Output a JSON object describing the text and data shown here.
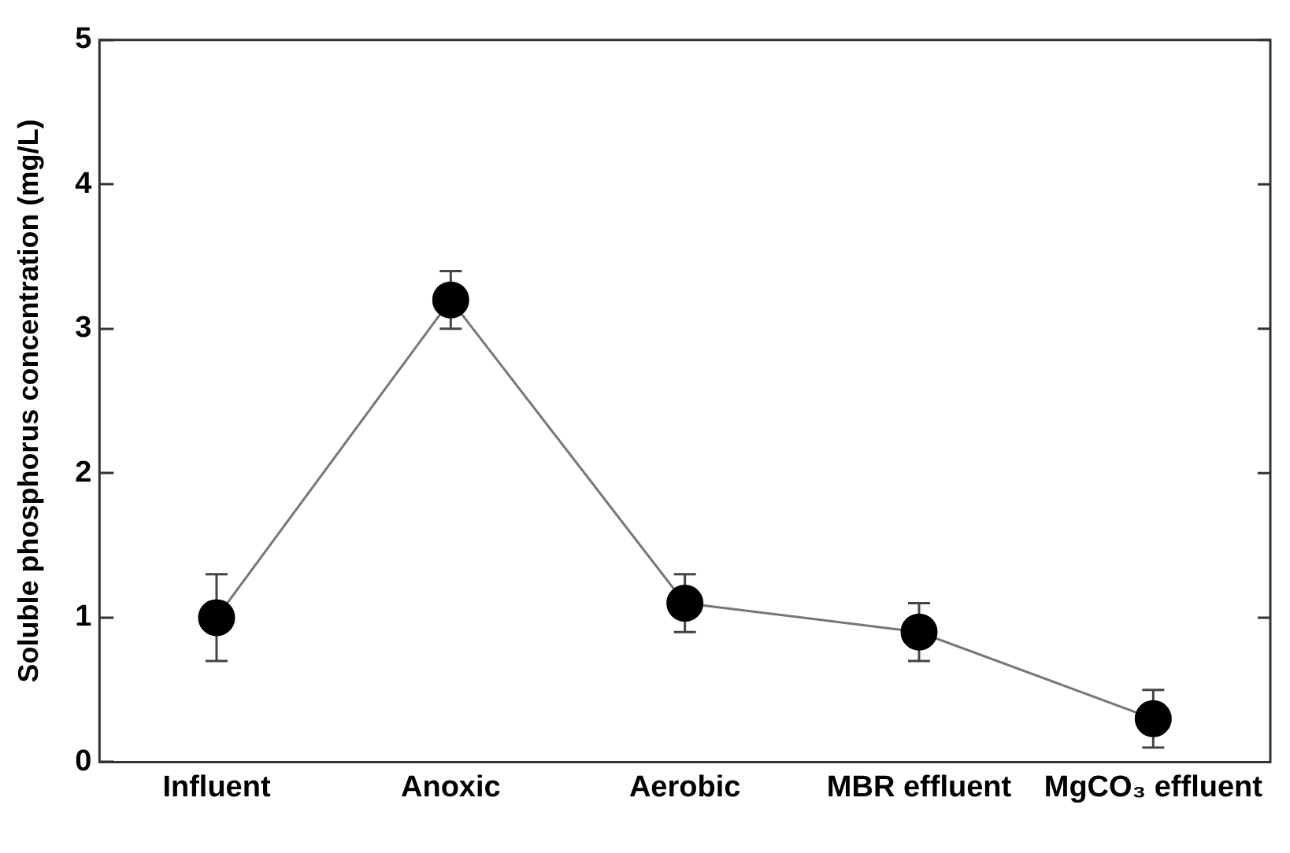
{
  "chart_data": {
    "type": "line",
    "ylabel": "Soluble phosphorus concentration (mg/L)",
    "categories": [
      "Influent",
      "Anoxic",
      "Aerobic",
      "MBR effluent",
      "MgCO₃ effluent"
    ],
    "series": [
      {
        "color": "#000000",
        "values": [
          1.0,
          3.2,
          1.1,
          0.9,
          0.3
        ],
        "errors": [
          0.3,
          0.2,
          0.2,
          0.2,
          0.2
        ]
      }
    ],
    "ylim": [
      0,
      5
    ],
    "yticks": [
      0,
      1,
      2,
      3,
      4,
      5
    ],
    "grid": false,
    "legend": false,
    "marker": "circle",
    "line_style": "solid"
  }
}
